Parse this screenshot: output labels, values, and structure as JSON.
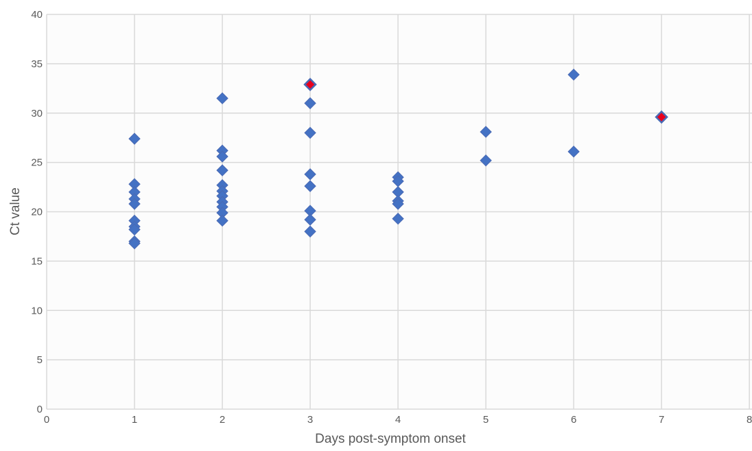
{
  "chart_data": {
    "type": "scatter",
    "xlabel": "Days post-symptom onset",
    "ylabel": "Ct value",
    "xlim": [
      0,
      8
    ],
    "ylim": [
      0,
      40
    ],
    "x_ticks": [
      "0",
      "1",
      "2",
      "3",
      "4",
      "5",
      "6",
      "7",
      "8"
    ],
    "y_ticks": [
      "0",
      "5",
      "10",
      "15",
      "20",
      "25",
      "30",
      "35",
      "40"
    ],
    "grid": true,
    "legend": "none",
    "marker": "diamond",
    "colors": {
      "marker_fill": "#4472c4",
      "highlight_fill": "#e8001c",
      "marker_stroke": "#4a6ab4",
      "grid": "#d9d9d9",
      "plot_background": "#fcfcfc"
    },
    "series": [
      {
        "points": [
          {
            "x": 1,
            "y": 27.4
          },
          {
            "x": 1,
            "y": 22.8
          },
          {
            "x": 1,
            "y": 22.0
          },
          {
            "x": 1,
            "y": 21.3
          },
          {
            "x": 1,
            "y": 20.8
          },
          {
            "x": 1,
            "y": 19.1
          },
          {
            "x": 1,
            "y": 18.5
          },
          {
            "x": 1,
            "y": 18.2
          },
          {
            "x": 1,
            "y": 17.0
          },
          {
            "x": 1,
            "y": 16.8
          },
          {
            "x": 2,
            "y": 31.5
          },
          {
            "x": 2,
            "y": 26.2
          },
          {
            "x": 2,
            "y": 25.6
          },
          {
            "x": 2,
            "y": 24.2
          },
          {
            "x": 2,
            "y": 22.7
          },
          {
            "x": 2,
            "y": 22.1
          },
          {
            "x": 2,
            "y": 21.6
          },
          {
            "x": 2,
            "y": 21.0
          },
          {
            "x": 2,
            "y": 20.5
          },
          {
            "x": 2,
            "y": 19.9
          },
          {
            "x": 2,
            "y": 19.1
          },
          {
            "x": 3,
            "y": 31.0
          },
          {
            "x": 3,
            "y": 28.0
          },
          {
            "x": 3,
            "y": 23.8
          },
          {
            "x": 3,
            "y": 22.6
          },
          {
            "x": 3,
            "y": 20.1
          },
          {
            "x": 3,
            "y": 19.2
          },
          {
            "x": 3,
            "y": 18.0
          },
          {
            "x": 4,
            "y": 23.5
          },
          {
            "x": 4,
            "y": 23.1
          },
          {
            "x": 4,
            "y": 22.0
          },
          {
            "x": 4,
            "y": 21.1
          },
          {
            "x": 4,
            "y": 20.8
          },
          {
            "x": 4,
            "y": 19.3
          },
          {
            "x": 5,
            "y": 28.1
          },
          {
            "x": 5,
            "y": 25.2
          },
          {
            "x": 6,
            "y": 33.9
          },
          {
            "x": 6,
            "y": 26.1
          }
        ]
      },
      {
        "highlighted": true,
        "points": [
          {
            "x": 3,
            "y": 32.9
          },
          {
            "x": 7,
            "y": 29.6
          }
        ]
      }
    ]
  }
}
